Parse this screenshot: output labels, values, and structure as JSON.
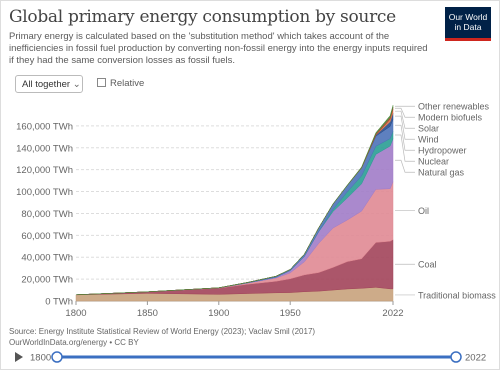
{
  "chart_data": {
    "type": "stacked-area",
    "title": "Global primary energy consumption by source",
    "subtitle": "Primary energy is calculated based on the 'substitution method' which takes account of the inefficiencies in fossil fuel production by converting non-fossil energy into the energy inputs required if they had the same conversion losses as fossil fuels.",
    "x": [
      1800,
      1850,
      1900,
      1920,
      1940,
      1950,
      1960,
      1970,
      1980,
      1990,
      2000,
      2010,
      2020,
      2022
    ],
    "series": [
      {
        "name": "Traditional biomass",
        "color": "#c8a27c",
        "values": [
          5600,
          7000,
          6100,
          6800,
          7500,
          7700,
          8500,
          9000,
          10000,
          11000,
          11600,
          12500,
          11100,
          11100
        ]
      },
      {
        "name": "Coal",
        "color": "#a2445a",
        "values": [
          100,
          1400,
          5700,
          8500,
          10500,
          12600,
          15400,
          17000,
          20700,
          25000,
          27000,
          41000,
          43500,
          45000
        ]
      },
      {
        "name": "Oil",
        "color": "#e08a93",
        "values": [
          0,
          0,
          180,
          1000,
          2900,
          5400,
          12000,
          26700,
          36000,
          38000,
          43500,
          48500,
          48000,
          52800
        ]
      },
      {
        "name": "Natural gas",
        "color": "#a17cc8",
        "values": [
          0,
          0,
          60,
          250,
          800,
          2100,
          5000,
          10600,
          15100,
          20200,
          25000,
          32000,
          39000,
          39400
        ]
      },
      {
        "name": "Nuclear",
        "color": "#2a9d94",
        "values": [
          0,
          0,
          0,
          0,
          0,
          0,
          0,
          230,
          2000,
          5600,
          7300,
          7400,
          6800,
          6700
        ]
      },
      {
        "name": "Hydropower",
        "color": "#4c72b8",
        "values": [
          0,
          0,
          50,
          400,
          900,
          1000,
          2000,
          3400,
          4800,
          5800,
          7100,
          9200,
          11200,
          11200
        ]
      },
      {
        "name": "Wind",
        "color": "#284d8c",
        "values": [
          0,
          0,
          0,
          0,
          0,
          0,
          0,
          0,
          0,
          0,
          80,
          900,
          4200,
          5500
        ]
      },
      {
        "name": "Solar",
        "color": "#e07a4b",
        "values": [
          0,
          0,
          0,
          0,
          0,
          0,
          0,
          0,
          0,
          0,
          0,
          90,
          2300,
          3500
        ]
      },
      {
        "name": "Modern biofuels",
        "color": "#a5462e",
        "values": [
          0,
          0,
          0,
          0,
          0,
          0,
          0,
          0,
          0,
          0,
          250,
          1300,
          1700,
          1900
        ]
      },
      {
        "name": "Other renewables",
        "color": "#4d8a3c",
        "values": [
          0,
          0,
          0,
          0,
          0,
          0,
          0,
          0,
          200,
          400,
          600,
          900,
          1600,
          1700
        ]
      }
    ],
    "xlim": [
      1800,
      2022
    ],
    "xticks": [
      1800,
      1850,
      1900,
      1950,
      2022
    ],
    "ylim": [
      0,
      180000
    ],
    "yticks": [
      {
        "value": 0,
        "label": "0 TWh"
      },
      {
        "value": 20000,
        "label": "20,000 TWh"
      },
      {
        "value": 40000,
        "label": "40,000 TWh"
      },
      {
        "value": 60000,
        "label": "60,000 TWh"
      },
      {
        "value": 80000,
        "label": "80,000 TWh"
      },
      {
        "value": 100000,
        "label": "100,000 TWh"
      },
      {
        "value": 120000,
        "label": "120,000 TWh"
      },
      {
        "value": 140000,
        "label": "140,000 TWh"
      },
      {
        "value": 160000,
        "label": "160,000 TWh"
      }
    ],
    "grid": true
  },
  "logo": [
    "Our World",
    "in Data"
  ],
  "controls": {
    "dropdown": "All together",
    "checkbox": "Relative",
    "timeline_start": 1800,
    "timeline_end": 2022
  },
  "source": [
    "Source: Energy Institute Statistical Review of World Energy (2023); Vaclav Smil (2017)",
    "OurWorldInData.org/energy • CC BY"
  ]
}
